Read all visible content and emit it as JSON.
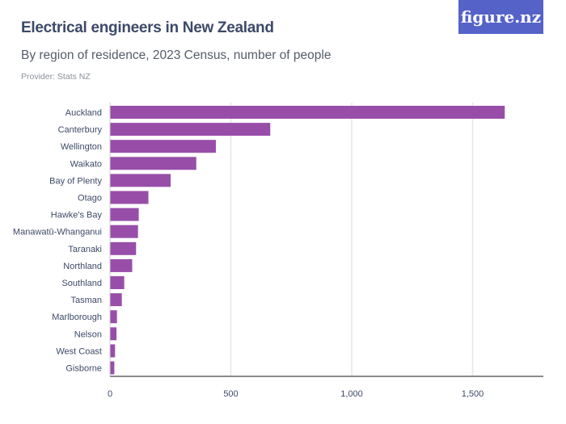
{
  "header": {
    "title": "Electrical engineers in New Zealand",
    "subtitle": "By region of residence, 2023 Census, number of people",
    "provider": "Provider: Stats NZ",
    "logo": "figure.nz"
  },
  "chart_data": {
    "type": "bar",
    "orientation": "horizontal",
    "title": "Electrical engineers in New Zealand",
    "subtitle": "By region of residence, 2023 Census, number of people",
    "categories": [
      "Auckland",
      "Canterbury",
      "Wellington",
      "Waikato",
      "Bay of Plenty",
      "Otago",
      "Hawke's Bay",
      "Manawatū-Whanganui",
      "Taranaki",
      "Northland",
      "Southland",
      "Tasman",
      "Marlborough",
      "Nelson",
      "West Coast",
      "Gisborne"
    ],
    "values": [
      1633,
      663,
      438,
      357,
      251,
      159,
      119,
      116,
      108,
      92,
      59,
      49,
      29,
      27,
      21,
      18
    ],
    "xlim": [
      0,
      1800
    ],
    "xticks": [
      0,
      500,
      1000,
      1500
    ],
    "xtick_labels": [
      "0",
      "500",
      "1,000",
      "1,500"
    ],
    "grid": true,
    "bar_color": "#984ea9"
  }
}
